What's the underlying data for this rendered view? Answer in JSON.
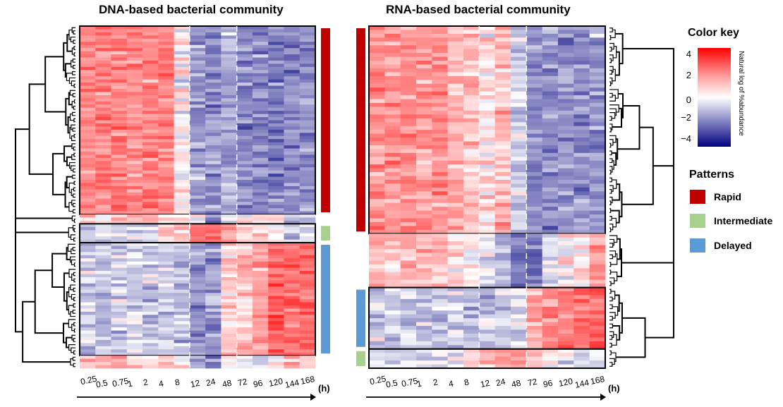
{
  "chart_data": [
    {
      "type": "heatmap",
      "title": "DNA-based bacterial community",
      "x_categories": [
        "0.25",
        "0.5",
        "0.75",
        "1",
        "2",
        "4",
        "8",
        "12",
        "24",
        "48",
        "72",
        "96",
        "120",
        "144",
        "168"
      ],
      "x_unit": "(h)",
      "dendrogram_side": "left",
      "pattern_bar_side": "right",
      "row_groups": [
        {
          "pattern": "Rapid",
          "rows": 60,
          "boxed": true,
          "profile": [
            1.8,
            2.0,
            2.0,
            2.0,
            1.9,
            2.0,
            0.2,
            -1.6,
            -1.8,
            -1.2,
            -2.0,
            -2.0,
            -2.0,
            -2.0,
            -1.8
          ]
        },
        {
          "pattern": "Unassigned",
          "rows": 3,
          "boxed": false,
          "profile": [
            0.3,
            0.5,
            0.4,
            0.5,
            0.8,
            0.6,
            0.3,
            -0.4,
            -2.4,
            -0.6,
            0.2,
            0.6,
            0.3,
            -1.0,
            -0.4
          ]
        },
        {
          "pattern": "Intermediate",
          "rows": 6,
          "boxed": true,
          "profile": [
            -0.6,
            -0.8,
            -0.5,
            -0.6,
            -0.3,
            0.4,
            0.8,
            2.6,
            2.4,
            2.0,
            0.8,
            0.4,
            -0.2,
            -0.8,
            -0.2
          ]
        },
        {
          "pattern": "Delayed",
          "rows": 36,
          "boxed": true,
          "profile": [
            -0.6,
            -0.8,
            -0.7,
            -0.7,
            -0.8,
            -0.7,
            -0.9,
            -1.8,
            -1.6,
            0.6,
            1.0,
            1.6,
            2.6,
            2.4,
            2.6
          ]
        },
        {
          "pattern": "Unassigned",
          "rows": 4,
          "boxed": false,
          "profile": [
            0.6,
            0.8,
            1.4,
            1.2,
            0.2,
            0.8,
            0.0,
            -1.2,
            -2.2,
            0.4,
            -0.6,
            -0.6,
            0.6,
            1.0,
            0.4
          ]
        }
      ]
    },
    {
      "type": "heatmap",
      "title": "RNA-based bacterial community",
      "x_categories": [
        "0.25",
        "0.5",
        "0.75",
        "1",
        "2",
        "4",
        "8",
        "12",
        "24",
        "48",
        "72",
        "96",
        "120",
        "144",
        "168"
      ],
      "x_unit": "(h)",
      "dendrogram_side": "right",
      "pattern_bar_side": "left",
      "row_groups": [
        {
          "pattern": "Rapid",
          "rows": 54,
          "boxed": true,
          "profile": [
            1.8,
            1.6,
            1.8,
            1.6,
            1.8,
            1.2,
            0.8,
            0.4,
            1.0,
            -0.8,
            -1.8,
            -1.8,
            -1.6,
            -1.8,
            -1.4
          ]
        },
        {
          "pattern": "Unassigned",
          "rows": 14,
          "boxed": false,
          "profile": [
            1.0,
            0.8,
            1.0,
            1.2,
            1.0,
            0.2,
            0.0,
            -0.6,
            -1.2,
            -2.2,
            -2.2,
            -0.6,
            -0.2,
            0.6,
            1.6
          ]
        },
        {
          "pattern": "Delayed",
          "rows": 16,
          "boxed": true,
          "profile": [
            -0.8,
            -0.8,
            -0.8,
            -0.8,
            -0.8,
            -0.8,
            -0.8,
            -0.7,
            -0.7,
            -0.3,
            1.4,
            1.8,
            2.0,
            2.4,
            2.8
          ]
        },
        {
          "pattern": "Intermediate",
          "rows": 5,
          "boxed": true,
          "profile": [
            -0.5,
            -0.6,
            -0.6,
            -0.6,
            -0.5,
            -0.3,
            0.2,
            1.4,
            1.6,
            2.2,
            1.2,
            0.0,
            -0.4,
            -0.4,
            -0.5
          ]
        }
      ]
    }
  ],
  "legend": {
    "color_key": {
      "title": "Color key",
      "axis_label": "Natural log of %abundance",
      "ticks": [
        "4",
        "2",
        "0",
        "−2",
        "−4"
      ],
      "range": [
        -4.7,
        4.7
      ],
      "low_color": "#00007f",
      "mid_color": "#ffffff",
      "high_color": "#ff0000"
    },
    "patterns": {
      "title": "Patterns",
      "items": [
        {
          "label": "Rapid",
          "color": "#c00000"
        },
        {
          "label": "Intermediate",
          "color": "#a9d18e"
        },
        {
          "label": "Delayed",
          "color": "#5b9bd5"
        }
      ]
    }
  }
}
